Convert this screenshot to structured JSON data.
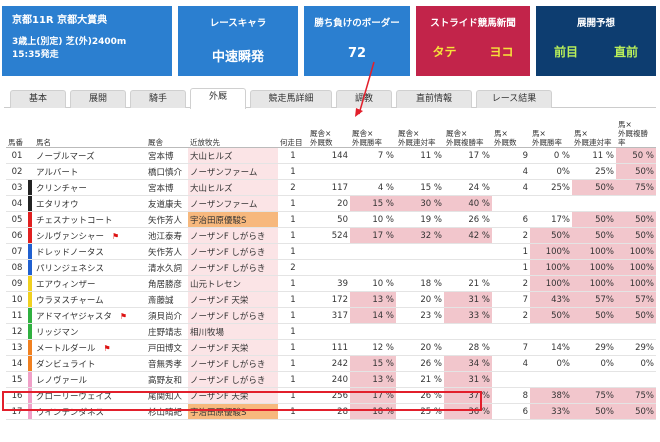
{
  "race": {
    "name": "京都11R 京都大賞典",
    "conditions": "3歳上(別定) 芝(外)2400m",
    "start": "15:35発走"
  },
  "panels": {
    "chara": {
      "head": "レースキャラ",
      "value": "中速瞬発"
    },
    "border": {
      "head": "勝ち負けのボーダー",
      "value": "72"
    },
    "stride": {
      "head": "ストライド競馬新聞",
      "left": "タテ",
      "right": "ヨコ"
    },
    "tenkai": {
      "head": "展開予想",
      "left": "前目",
      "right": "直前"
    }
  },
  "tabs": [
    "基本",
    "展開",
    "騎手",
    "外厩",
    "競走馬詳細",
    "調教",
    "直前情報",
    "レース結果"
  ],
  "active_tab": "外厩",
  "headers": [
    "馬番",
    "馬名",
    "厩舎",
    "近放牧先",
    "何走目",
    "厩舎×\n外厩数",
    "厩舎×\n外厩勝率",
    "厩舎×\n外厩連対率",
    "厩舎×\n外厩複勝率",
    "馬×\n外厩数",
    "馬×\n外厩勝率",
    "馬×\n外厩連対率",
    "馬×\n外厩複勝率"
  ],
  "colors": {
    "blue": "#2b7fd0",
    "red": "#c2244a",
    "navy": "#0d3d70",
    "pink": "#f2c6cc",
    "orange": "#f7b87d"
  },
  "rows": [
    {
      "no": "01",
      "name": "ノーブルマーズ",
      "trainer": "宮本博",
      "farm": "大山ヒルズ",
      "run": "1",
      "c1": "144",
      "c2": "7 %",
      "c3": "11 %",
      "c4": "17 %",
      "h1": "9",
      "h2": "0 %",
      "h3": "11 %",
      "h4": "50 %",
      "gate": "#ffffff"
    },
    {
      "no": "02",
      "name": "アルバート",
      "trainer": "橋口慎介",
      "farm": "ノーザンファーム",
      "run": "1",
      "c1": "",
      "c2": "",
      "c3": "",
      "c4": "",
      "h1": "4",
      "h2": "0%",
      "h3": "25%",
      "h4": "50%",
      "gate": "#ffffff"
    },
    {
      "no": "03",
      "name": "クリンチャー",
      "trainer": "宮本博",
      "farm": "大山ヒルズ",
      "run": "2",
      "c1": "117",
      "c2": "4 %",
      "c3": "15 %",
      "c4": "24 %",
      "h1": "4",
      "h2": "25%",
      "h3": "50%",
      "h4": "75%",
      "gate": "#222222"
    },
    {
      "no": "04",
      "name": "エタリオウ",
      "trainer": "友道康夫",
      "farm": "ノーザンファーム",
      "run": "1",
      "c1": "20",
      "c2": "15 %",
      "c3": "30 %",
      "c4": "40 %",
      "h1": "",
      "h2": "",
      "h3": "",
      "h4": "",
      "gate": "#222222"
    },
    {
      "no": "05",
      "name": "チェスナットコート",
      "trainer": "矢作芳人",
      "farm": "宇治田原優駿S",
      "run": "1",
      "c1": "50",
      "c2": "10 %",
      "c3": "19 %",
      "c4": "26 %",
      "h1": "6",
      "h2": "17%",
      "h3": "50%",
      "h4": "50%",
      "gate": "#e02020"
    },
    {
      "no": "06",
      "name": "シルヴァンシャー",
      "trainer": "池江泰寿",
      "farm": "ノーザンF しがらき",
      "run": "1",
      "c1": "524",
      "c2": "17 %",
      "c3": "32 %",
      "c4": "42 %",
      "h1": "2",
      "h2": "50%",
      "h3": "50%",
      "h4": "50%",
      "gate": "#e02020",
      "flag": true
    },
    {
      "no": "07",
      "name": "ドレッドノータス",
      "trainer": "矢作芳人",
      "farm": "ノーザンF しがらき",
      "run": "1",
      "c1": "",
      "c2": "",
      "c3": "",
      "c4": "",
      "h1": "1",
      "h2": "100%",
      "h3": "100%",
      "h4": "100%",
      "gate": "#2060d0"
    },
    {
      "no": "08",
      "name": "パリンジェネシス",
      "trainer": "清水久詞",
      "farm": "ノーザンF しがらき",
      "run": "2",
      "c1": "",
      "c2": "",
      "c3": "",
      "c4": "",
      "h1": "1",
      "h2": "100%",
      "h3": "100%",
      "h4": "100%",
      "gate": "#2060d0"
    },
    {
      "no": "09",
      "name": "エアウィンザー",
      "trainer": "角居勝彦",
      "farm": "山元トレセン",
      "run": "1",
      "c1": "39",
      "c2": "10 %",
      "c3": "18 %",
      "c4": "21 %",
      "h1": "2",
      "h2": "100%",
      "h3": "100%",
      "h4": "100%",
      "gate": "#f0d020"
    },
    {
      "no": "10",
      "name": "ウラヌスチャーム",
      "trainer": "斎藤誠",
      "farm": "ノーザンF 天栄",
      "run": "1",
      "c1": "172",
      "c2": "13 %",
      "c3": "20 %",
      "c4": "31 %",
      "h1": "7",
      "h2": "43%",
      "h3": "57%",
      "h4": "57%",
      "gate": "#f0d020"
    },
    {
      "no": "11",
      "name": "アドマイヤジャスタ",
      "trainer": "須貝尚介",
      "farm": "ノーザンF しがらき",
      "run": "1",
      "c1": "317",
      "c2": "14 %",
      "c3": "23 %",
      "c4": "33 %",
      "h1": "2",
      "h2": "50%",
      "h3": "50%",
      "h4": "50%",
      "gate": "#30b040",
      "flag": true
    },
    {
      "no": "12",
      "name": "リッジマン",
      "trainer": "庄野靖志",
      "farm": "相川牧場",
      "run": "1",
      "c1": "",
      "c2": "",
      "c3": "",
      "c4": "",
      "h1": "",
      "h2": "",
      "h3": "",
      "h4": "",
      "gate": "#30b040"
    },
    {
      "no": "13",
      "name": "メートルダール",
      "trainer": "戸田博文",
      "farm": "ノーザンF 天栄",
      "run": "1",
      "c1": "111",
      "c2": "12 %",
      "c3": "20 %",
      "c4": "28 %",
      "h1": "7",
      "h2": "14%",
      "h3": "29%",
      "h4": "29%",
      "gate": "#f08020",
      "flag": true
    },
    {
      "no": "14",
      "name": "ダンビュライト",
      "trainer": "音無秀孝",
      "farm": "ノーザンF しがらき",
      "run": "1",
      "c1": "242",
      "c2": "15 %",
      "c3": "26 %",
      "c4": "34 %",
      "h1": "4",
      "h2": "0%",
      "h3": "0%",
      "h4": "0%",
      "gate": "#f08020"
    },
    {
      "no": "15",
      "name": "レノヴァール",
      "trainer": "高野友和",
      "farm": "ノーザンF しがらき",
      "run": "1",
      "c1": "240",
      "c2": "13 %",
      "c3": "21 %",
      "c4": "31 %",
      "h1": "",
      "h2": "",
      "h3": "",
      "h4": "",
      "gate": "#f0a0c8"
    },
    {
      "no": "16",
      "name": "グローリーヴェイズ",
      "trainer": "尾関知人",
      "farm": "ノーザンF 天栄",
      "run": "1",
      "c1": "256",
      "c2": "17 %",
      "c3": "26 %",
      "c4": "37 %",
      "h1": "8",
      "h2": "38%",
      "h3": "75%",
      "h4": "75%",
      "gate": "#f0a0c8"
    },
    {
      "no": "17",
      "name": "ウインテンダネス",
      "trainer": "杉山晴紀",
      "farm": "宇治田原優駿S",
      "run": "1",
      "c1": "28",
      "c2": "18 %",
      "c3": "25 %",
      "c4": "36 %",
      "h1": "6",
      "h2": "33%",
      "h3": "50%",
      "h4": "50%",
      "gate": "#f0a0c8"
    }
  ]
}
